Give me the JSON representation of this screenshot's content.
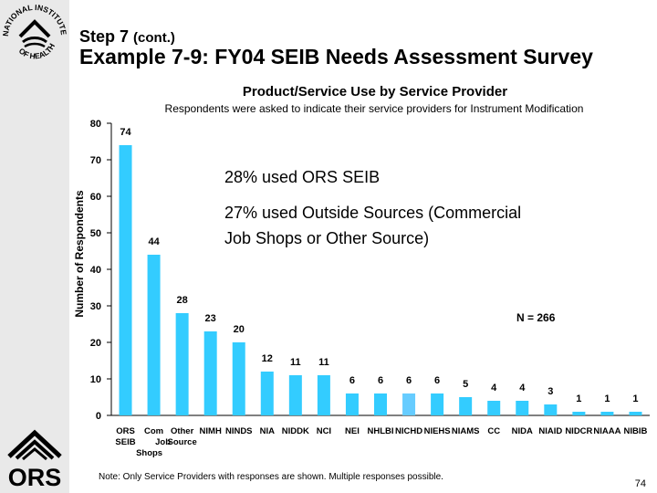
{
  "slide": {
    "step_label": "Step 7",
    "step_suffix": "(cont.)",
    "title": "Example 7-9: FY04 SEIB Needs Assessment Survey",
    "note": "Note:  Only Service Providers with responses are shown.  Multiple responses possible.",
    "page_number": "74",
    "logo_top_text": "NATIONAL INSTITUTES",
    "logo_bottom_text": "OF HEALTH",
    "ors_logo_text": "ORS"
  },
  "annotations": {
    "ors_seib": "28% used ORS SEIB",
    "outside_line1": "27% used Outside Sources (Commercial",
    "outside_line2": "Job Shops or Other Source)",
    "n_count": "N = 266"
  },
  "chart_data": {
    "type": "bar",
    "title": "Product/Service Use by Service Provider",
    "subtitle": "Respondents were asked to indicate their service providers for Instrument Modification",
    "ylabel": "Number of Respondents",
    "xlabel": "",
    "ylim": [
      0,
      80
    ],
    "yticks": [
      0,
      10,
      20,
      30,
      40,
      50,
      60,
      70,
      80
    ],
    "grid": false,
    "categories": [
      [
        "ORS",
        "SEIB"
      ],
      [
        "Com",
        "Job",
        "Shops"
      ],
      [
        "Other",
        "Source"
      ],
      [
        "NIMH"
      ],
      [
        "NINDS"
      ],
      [
        "NIA"
      ],
      [
        "NIDDK"
      ],
      [
        "NCI"
      ],
      [
        "NEI"
      ],
      [
        "NHLBI"
      ],
      [
        "NICHD"
      ],
      [
        "NIEHS"
      ],
      [
        "NIAMS"
      ],
      [
        "CC"
      ],
      [
        "NIDA"
      ],
      [
        "NIAID"
      ],
      [
        "NIDCR"
      ],
      [
        "NIAAA"
      ],
      [
        "NIBIB"
      ]
    ],
    "values": [
      74,
      44,
      28,
      23,
      20,
      12,
      11,
      11,
      6,
      6,
      6,
      6,
      5,
      4,
      4,
      3,
      1,
      1,
      1
    ],
    "colors": {
      "bar": "#33ccff",
      "bar_highlight": "#66ccff",
      "axis": "#000000"
    }
  }
}
